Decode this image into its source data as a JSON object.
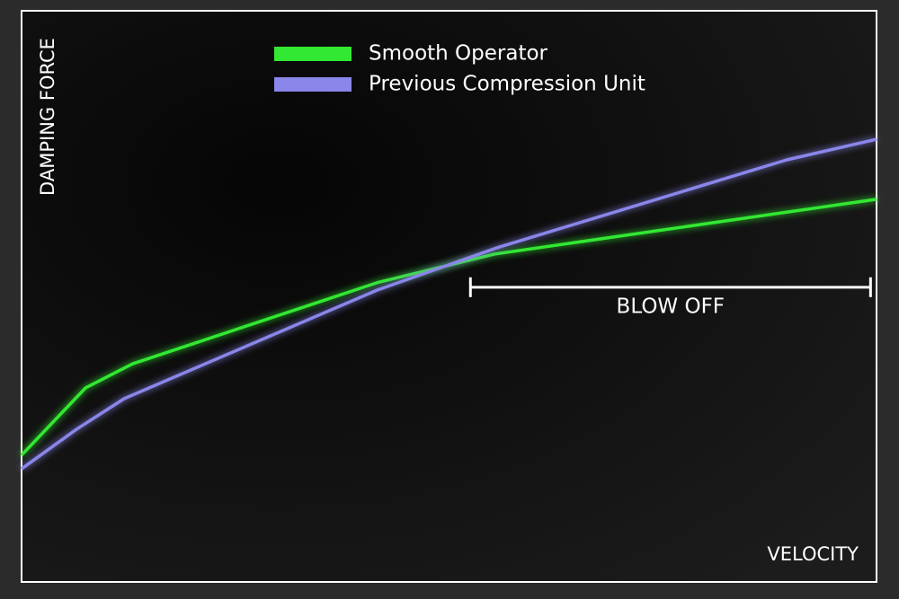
{
  "chart_data": {
    "type": "line",
    "y_label": "DAMPING FORCE",
    "x_label": "VELOCITY",
    "xlim": [
      0,
      100
    ],
    "ylim": [
      0,
      100
    ],
    "series": [
      {
        "name": "Smooth Operator",
        "color": "#33e833",
        "x": [
          0,
          7.5,
          13,
          41.6,
          55.3,
          100
        ],
        "values": [
          22.2,
          34,
          38.2,
          52.4,
          57.4,
          67
        ]
      },
      {
        "name": "Previous Compression Unit",
        "color": "#8a86ea",
        "x": [
          0,
          6.4,
          12,
          41.6,
          55.8,
          89.5,
          100
        ],
        "values": [
          19.8,
          26.7,
          32.1,
          51.1,
          58.6,
          73.9,
          77.5
        ]
      }
    ],
    "annotation": {
      "text": "BLOW OFF",
      "x": [
        52.5,
        99.3
      ],
      "y": 51.6
    }
  }
}
